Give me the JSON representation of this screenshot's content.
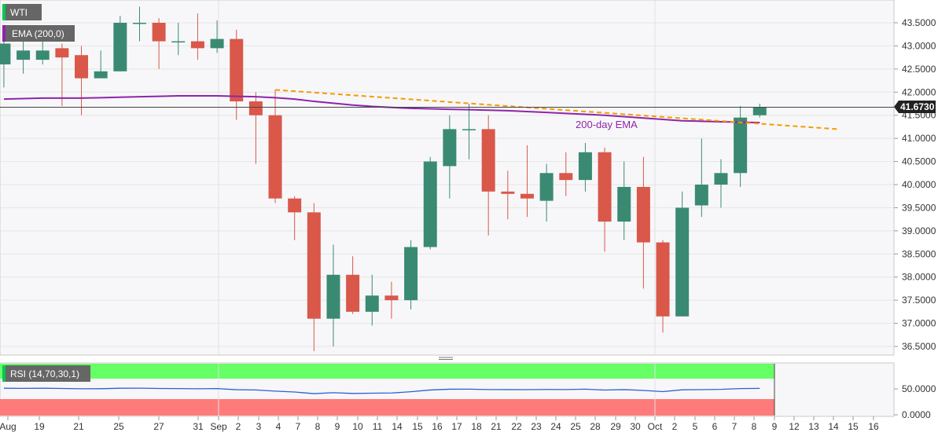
{
  "symbol": "WTI",
  "indicator_label": "EMA (200,0)",
  "rsi_label": "RSI (14,70,30,1)",
  "ema_annotation": "200-day EMA",
  "last_price_label": "41.6730",
  "colors": {
    "bull": "#3a8a73",
    "bear": "#d9584a",
    "ema": "#8e24aa",
    "trendline": "#f59b00",
    "rsi_line": "#2f5fd0",
    "rsi_overbought": "#66ff66",
    "rsi_oversold": "#ff7b7b",
    "label_bg": "#666666",
    "price_tag_bg": "#222222"
  },
  "chart_data": [
    {
      "type": "candlestick",
      "y_ticks": [
        "43.5000",
        "43.0000",
        "42.5000",
        "42.0000",
        "41.5000",
        "41.0000",
        "40.5000",
        "40.0000",
        "39.5000",
        "39.0000",
        "38.5000",
        "38.0000",
        "37.5000",
        "37.0000",
        "36.5000"
      ],
      "ylim": [
        36.3,
        43.8
      ],
      "x_ticks": [
        "Aug",
        "19",
        "21",
        "25",
        "27",
        "31",
        "Sep",
        "2",
        "3",
        "4",
        "7",
        "8",
        "9",
        "10",
        "11",
        "14",
        "15",
        "16",
        "17",
        "18",
        "21",
        "22",
        "23",
        "24",
        "25",
        "28",
        "29",
        "30",
        "Oct",
        "2",
        "5",
        "6",
        "7",
        "8",
        "9",
        "12",
        "13",
        "14",
        "15",
        "16"
      ],
      "last_price": 41.673,
      "candles": [
        {
          "date": "Aug 17",
          "open": 42.6,
          "high": 43.1,
          "low": 42.1,
          "close": 43.05
        },
        {
          "date": "Aug 18",
          "open": 42.7,
          "high": 43.2,
          "low": 42.4,
          "close": 42.9
        },
        {
          "date": "Aug 19",
          "open": 42.7,
          "high": 43.2,
          "low": 42.6,
          "close": 42.9
        },
        {
          "date": "Aug 20",
          "open": 42.95,
          "high": 43.05,
          "low": 41.7,
          "close": 42.75
        },
        {
          "date": "Aug 21",
          "open": 42.8,
          "high": 43.0,
          "low": 41.5,
          "close": 42.3
        },
        {
          "date": "Aug 24",
          "open": 42.3,
          "high": 42.9,
          "low": 42.3,
          "close": 42.45
        },
        {
          "date": "Aug 25",
          "open": 42.45,
          "high": 43.65,
          "low": 42.45,
          "close": 43.5
        },
        {
          "date": "Aug 26",
          "open": 43.5,
          "high": 43.85,
          "low": 43.1,
          "close": 43.5
        },
        {
          "date": "Aug 27",
          "open": 43.5,
          "high": 43.6,
          "low": 42.5,
          "close": 43.1
        },
        {
          "date": "Aug 28",
          "open": 43.1,
          "high": 43.5,
          "low": 42.8,
          "close": 43.1
        },
        {
          "date": "Aug 31",
          "open": 43.1,
          "high": 43.7,
          "low": 42.7,
          "close": 42.95
        },
        {
          "date": "Sep 1",
          "open": 42.95,
          "high": 43.55,
          "low": 42.85,
          "close": 43.15
        },
        {
          "date": "Sep 2",
          "open": 43.15,
          "high": 43.35,
          "low": 41.4,
          "close": 41.8
        },
        {
          "date": "Sep 3",
          "open": 41.8,
          "high": 42.0,
          "low": 40.45,
          "close": 41.5
        },
        {
          "date": "Sep 4",
          "open": 41.5,
          "high": 42.05,
          "low": 39.6,
          "close": 39.7
        },
        {
          "date": "Sep 7",
          "open": 39.7,
          "high": 39.75,
          "low": 38.8,
          "close": 39.4
        },
        {
          "date": "Sep 8",
          "open": 39.4,
          "high": 39.6,
          "low": 36.4,
          "close": 37.1
        },
        {
          "date": "Sep 9",
          "open": 37.1,
          "high": 38.7,
          "low": 36.5,
          "close": 38.05
        },
        {
          "date": "Sep 10",
          "open": 38.05,
          "high": 38.45,
          "low": 37.2,
          "close": 37.25
        },
        {
          "date": "Sep 11",
          "open": 37.25,
          "high": 38.05,
          "low": 36.95,
          "close": 37.6
        },
        {
          "date": "Sep 14",
          "open": 37.6,
          "high": 37.9,
          "low": 37.1,
          "close": 37.5
        },
        {
          "date": "Sep 15",
          "open": 37.5,
          "high": 38.8,
          "low": 37.3,
          "close": 38.65
        },
        {
          "date": "Sep 16",
          "open": 38.65,
          "high": 40.6,
          "low": 38.6,
          "close": 40.5
        },
        {
          "date": "Sep 17",
          "open": 40.4,
          "high": 41.5,
          "low": 39.7,
          "close": 41.2
        },
        {
          "date": "Sep 18",
          "open": 41.2,
          "high": 41.75,
          "low": 40.55,
          "close": 41.2
        },
        {
          "date": "Sep 21",
          "open": 41.2,
          "high": 41.5,
          "low": 38.9,
          "close": 39.85
        },
        {
          "date": "Sep 22",
          "open": 39.85,
          "high": 40.3,
          "low": 39.25,
          "close": 39.8
        },
        {
          "date": "Sep 23",
          "open": 39.8,
          "high": 40.85,
          "low": 39.3,
          "close": 39.7
        },
        {
          "date": "Sep 24",
          "open": 39.65,
          "high": 40.45,
          "low": 39.2,
          "close": 40.25
        },
        {
          "date": "Sep 25",
          "open": 40.25,
          "high": 40.7,
          "low": 39.75,
          "close": 40.1
        },
        {
          "date": "Sep 28",
          "open": 40.1,
          "high": 40.9,
          "low": 39.85,
          "close": 40.7
        },
        {
          "date": "Sep 29",
          "open": 40.7,
          "high": 40.8,
          "low": 38.55,
          "close": 39.2
        },
        {
          "date": "Sep 30",
          "open": 39.2,
          "high": 40.5,
          "low": 38.8,
          "close": 39.95
        },
        {
          "date": "Oct 1",
          "open": 39.95,
          "high": 40.6,
          "low": 37.75,
          "close": 38.75
        },
        {
          "date": "Oct 2",
          "open": 38.75,
          "high": 38.8,
          "low": 36.8,
          "close": 37.15
        },
        {
          "date": "Oct 5",
          "open": 37.15,
          "high": 39.85,
          "low": 37.15,
          "close": 39.5
        },
        {
          "date": "Oct 6",
          "open": 39.55,
          "high": 41.0,
          "low": 39.3,
          "close": 40.0
        },
        {
          "date": "Oct 7",
          "open": 40.0,
          "high": 40.55,
          "low": 39.5,
          "close": 40.25
        },
        {
          "date": "Oct 8",
          "open": 40.25,
          "high": 41.7,
          "low": 39.95,
          "close": 41.45
        },
        {
          "date": "Oct 9",
          "open": 41.5,
          "high": 41.75,
          "low": 41.45,
          "close": 41.673
        }
      ],
      "ema_200": [
        41.85,
        41.86,
        41.87,
        41.87,
        41.87,
        41.88,
        41.89,
        41.9,
        41.91,
        41.92,
        41.92,
        41.92,
        41.91,
        41.9,
        41.88,
        41.85,
        41.8,
        41.76,
        41.72,
        41.69,
        41.67,
        41.65,
        41.64,
        41.63,
        41.62,
        41.61,
        41.6,
        41.58,
        41.56,
        41.54,
        41.52,
        41.5,
        41.47,
        41.44,
        41.41,
        41.38,
        41.37,
        41.36,
        41.35,
        41.34
      ],
      "trendline": [
        {
          "date": "Sep 4",
          "value": 42.05
        },
        {
          "date": "Oct 14",
          "value": 41.2
        }
      ]
    },
    {
      "type": "line",
      "title": "RSI (14,70,30,1)",
      "y_ticks": [
        "50.0000",
        "0.0000"
      ],
      "values": [
        51.2,
        51.0,
        51.2,
        50.8,
        50.2,
        50.3,
        51.2,
        51.3,
        50.8,
        50.6,
        50.2,
        50.6,
        48.4,
        47.9,
        45.7,
        43.9,
        40.8,
        42.6,
        41.2,
        41.7,
        42.0,
        44.5,
        47.8,
        49.3,
        49.4,
        48.7,
        48.6,
        48.5,
        48.9,
        48.7,
        49.4,
        47.7,
        48.6,
        47.0,
        44.7,
        48.2,
        48.5,
        49.0,
        50.6,
        51.0
      ]
    }
  ]
}
